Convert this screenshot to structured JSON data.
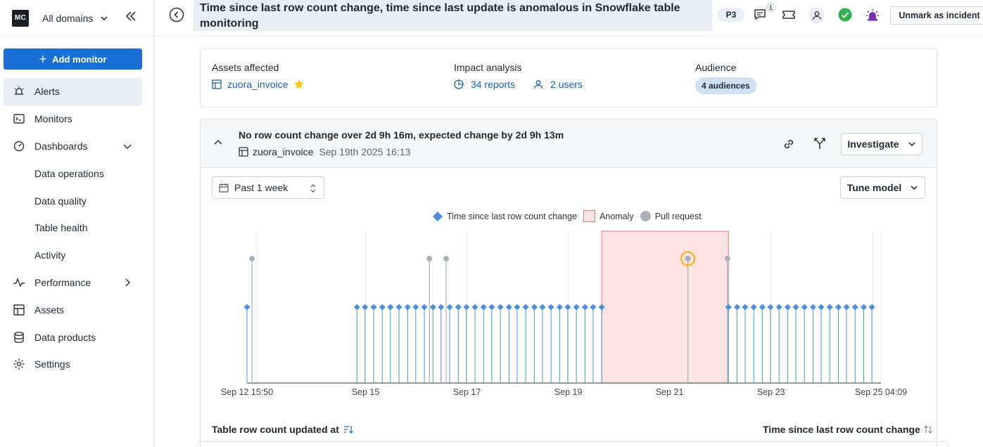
{
  "sidebar": {
    "logo": "MC",
    "domain_selector": "All domains",
    "add_monitor": "Add monitor",
    "items": [
      {
        "label": "Alerts"
      },
      {
        "label": "Monitors"
      },
      {
        "label": "Dashboards"
      },
      {
        "label": "Data operations"
      },
      {
        "label": "Data quality"
      },
      {
        "label": "Table health"
      },
      {
        "label": "Activity"
      },
      {
        "label": "Performance"
      },
      {
        "label": "Assets"
      },
      {
        "label": "Data products"
      },
      {
        "label": "Settings"
      }
    ]
  },
  "header": {
    "title": "Time since last row count change, time since last update is anomalous in Snowflake table monitoring",
    "priority": "P3",
    "comment_count": "1",
    "unmark_button": "Unmark as incident",
    "status_color": "#2fb24c",
    "alert_color": "#7b2fb0"
  },
  "summary": {
    "assets_label": "Assets affected",
    "asset_name": "zuora_invoice",
    "impact_label": "Impact analysis",
    "reports": "34 reports",
    "users": "2 users",
    "audience_label": "Audience",
    "audiences": "4 audiences"
  },
  "anomaly": {
    "title": "No row count change over 2d 9h 16m, expected change by 2d 9h 13m",
    "table": "zuora_invoice",
    "date": "Sep 19th 2025 16:13",
    "investigate": "Investigate",
    "range": "Past 1 week",
    "tune": "Tune model"
  },
  "chart_data": {
    "type": "scatter",
    "legend": [
      "Time since last row count change",
      "Anomaly",
      "Pull request"
    ],
    "x_tick_labels": [
      "Sep 12 15:50",
      "Sep 15",
      "Sep 17",
      "Sep 19",
      "Sep 21",
      "Sep 23",
      "Sep 25 04:09"
    ],
    "x_range_days": [
      0,
      12.51
    ],
    "series_points_day": [
      0.0,
      2.17,
      2.33,
      2.5,
      2.67,
      2.83,
      3.0,
      3.17,
      3.33,
      3.5,
      3.67,
      3.83,
      4.0,
      4.17,
      4.33,
      4.5,
      4.67,
      4.83,
      5.0,
      5.17,
      5.33,
      5.5,
      5.67,
      5.83,
      6.0,
      6.17,
      6.33,
      6.5,
      6.67,
      6.83,
      7.0,
      9.5,
      9.67,
      9.83,
      10.0,
      10.17,
      10.33,
      10.5,
      10.67,
      10.83,
      11.0,
      11.17,
      11.33,
      11.5,
      11.67,
      11.83,
      12.0,
      12.17,
      12.33
    ],
    "pull_requests_day": [
      0.1,
      3.6,
      3.93,
      8.7,
      9.48
    ],
    "highlighted_pull_request_day": 8.7,
    "anomaly_window_day": [
      7.0,
      9.5
    ],
    "color_series": "#4a90e2",
    "color_anomaly": "#fde2e3",
    "color_pr": "#a8b1bb"
  },
  "table": {
    "col_left": "Table row count updated at",
    "col_right": "Time since last row count change"
  }
}
